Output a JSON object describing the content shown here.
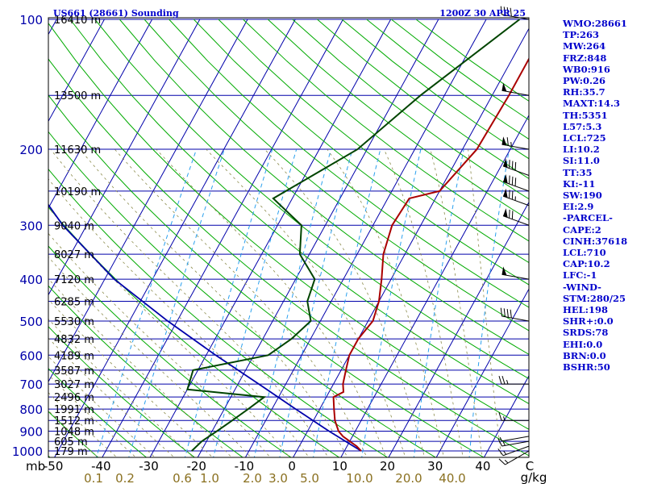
{
  "chart_data": {
    "type": "line",
    "title_left": "US661 (28661) Sounding",
    "title_right": "1200Z 30 APR 25",
    "pressure_unit": "mb",
    "mixing_unit": "g/kg",
    "pressure_ticks": [
      {
        "p": 100,
        "label": "100"
      },
      {
        "p": 200,
        "label": "200"
      },
      {
        "p": 300,
        "label": "300"
      },
      {
        "p": 400,
        "label": "400"
      },
      {
        "p": 500,
        "label": "500"
      },
      {
        "p": 600,
        "label": "600"
      },
      {
        "p": 700,
        "label": "700"
      },
      {
        "p": 800,
        "label": "800"
      },
      {
        "p": 900,
        "label": "900"
      },
      {
        "p": 1000,
        "label": "1000"
      }
    ],
    "temperature_ticks": [
      {
        "t": -50,
        "label": "-50"
      },
      {
        "t": -40,
        "label": "-40"
      },
      {
        "t": -30,
        "label": "-30"
      },
      {
        "t": -20,
        "label": "-20"
      },
      {
        "t": -10,
        "label": "-10"
      },
      {
        "t": 0,
        "label": "0"
      },
      {
        "t": 10,
        "label": "10"
      },
      {
        "t": 20,
        "label": "20"
      },
      {
        "t": 30,
        "label": "30"
      },
      {
        "t": 40,
        "label": "40"
      }
    ],
    "mixing_ratio_labels": [
      "0.1",
      "0.2",
      "0.6",
      "1.0",
      "2.0",
      "3.0",
      "5.0",
      "10.0",
      "20.0",
      "40.0"
    ],
    "heights": [
      {
        "p": 100,
        "label": "16410 m"
      },
      {
        "p": 150,
        "label": "13500 m"
      },
      {
        "p": 200,
        "label": "11630 m"
      },
      {
        "p": 250,
        "label": "10190 m"
      },
      {
        "p": 300,
        "label": "9040 m"
      },
      {
        "p": 350,
        "label": "8027 m"
      },
      {
        "p": 400,
        "label": "7120 m"
      },
      {
        "p": 450,
        "label": "6285 m"
      },
      {
        "p": 500,
        "label": "5530 m"
      },
      {
        "p": 550,
        "label": "4832 m"
      },
      {
        "p": 600,
        "label": "4189 m"
      },
      {
        "p": 650,
        "label": "3587 m"
      },
      {
        "p": 700,
        "label": "3027 m"
      },
      {
        "p": 750,
        "label": "2496 m"
      },
      {
        "p": 800,
        "label": "1991 m"
      },
      {
        "p": 850,
        "label": "1512 m"
      },
      {
        "p": 900,
        "label": "1048 m"
      },
      {
        "p": 950,
        "label": "605 m"
      },
      {
        "p": 1000,
        "label": "179 m"
      }
    ],
    "temperature_profile": [
      {
        "p": 1000,
        "t": 13.5
      },
      {
        "p": 975,
        "t": 12.0
      },
      {
        "p": 950,
        "t": 10.0
      },
      {
        "p": 925,
        "t": 8.0
      },
      {
        "p": 900,
        "t": 6.5
      },
      {
        "p": 850,
        "t": 4.5
      },
      {
        "p": 800,
        "t": 3.0
      },
      {
        "p": 750,
        "t": 1.5
      },
      {
        "p": 730,
        "t": 3.0
      },
      {
        "p": 700,
        "t": 2.0
      },
      {
        "p": 650,
        "t": 1.0
      },
      {
        "p": 600,
        "t": 0.0
      },
      {
        "p": 550,
        "t": 0.0
      },
      {
        "p": 500,
        "t": 1.0
      },
      {
        "p": 450,
        "t": 0.0
      },
      {
        "p": 400,
        "t": -2.0
      },
      {
        "p": 350,
        "t": -4.5
      },
      {
        "p": 300,
        "t": -6.0
      },
      {
        "p": 260,
        "t": -5.5
      },
      {
        "p": 250,
        "t": 0.0
      },
      {
        "p": 200,
        "t": 3.0
      },
      {
        "p": 150,
        "t": 3.5
      },
      {
        "p": 100,
        "t": 3.5
      }
    ],
    "dewpoint_profile": [
      {
        "p": 1000,
        "t": -22.0
      },
      {
        "p": 950,
        "t": -21.0
      },
      {
        "p": 900,
        "t": -19.0
      },
      {
        "p": 850,
        "t": -17.0
      },
      {
        "p": 800,
        "t": -15.0
      },
      {
        "p": 750,
        "t": -13.0
      },
      {
        "p": 720,
        "t": -30.0
      },
      {
        "p": 650,
        "t": -31.0
      },
      {
        "p": 600,
        "t": -17.0
      },
      {
        "p": 550,
        "t": -14.0
      },
      {
        "p": 500,
        "t": -12.0
      },
      {
        "p": 450,
        "t": -15.0
      },
      {
        "p": 400,
        "t": -16.0
      },
      {
        "p": 350,
        "t": -22.0
      },
      {
        "p": 300,
        "t": -25.0
      },
      {
        "p": 260,
        "t": -34.0
      },
      {
        "p": 200,
        "t": -22.0
      },
      {
        "p": 150,
        "t": -15.0
      },
      {
        "p": 100,
        "t": -3.0
      }
    ],
    "parcel_profile": [
      {
        "p": 1000,
        "t": 13.5
      },
      {
        "p": 900,
        "t": 4.5
      },
      {
        "p": 800,
        "t": -5.0
      },
      {
        "p": 710,
        "t": -14.5
      },
      {
        "p": 600,
        "t": -28.0
      },
      {
        "p": 500,
        "t": -42.0
      },
      {
        "p": 400,
        "t": -58.0
      },
      {
        "p": 300,
        "t": -75.0
      },
      {
        "p": 200,
        "t": -95.0
      },
      {
        "p": 150,
        "t": -110.0
      }
    ],
    "wind_barbs": [
      {
        "p": 1000,
        "dir": 240,
        "spd": 15
      },
      {
        "p": 975,
        "dir": 250,
        "spd": 15
      },
      {
        "p": 950,
        "dir": 260,
        "spd": 15
      },
      {
        "p": 925,
        "dir": 260,
        "spd": 5
      },
      {
        "p": 850,
        "dir": 270,
        "spd": 15
      },
      {
        "p": 700,
        "dir": 270,
        "spd": 25
      },
      {
        "p": 500,
        "dir": 280,
        "spd": 40
      },
      {
        "p": 400,
        "dir": 280,
        "spd": 50
      },
      {
        "p": 300,
        "dir": 290,
        "spd": 70
      },
      {
        "p": 270,
        "dir": 290,
        "spd": 75
      },
      {
        "p": 250,
        "dir": 290,
        "spd": 80
      },
      {
        "p": 230,
        "dir": 290,
        "spd": 80
      },
      {
        "p": 200,
        "dir": 280,
        "spd": 65
      },
      {
        "p": 150,
        "dir": 280,
        "spd": 50
      },
      {
        "p": 100,
        "dir": 280,
        "spd": 40
      }
    ]
  },
  "stats": [
    "WMO:28661",
    "TP:263",
    "MW:264",
    "FRZ:848",
    "WB0:916",
    "PW:0.26",
    "RH:35.7",
    "MAXT:14.3",
    "TH:5351",
    "L57:5.3",
    "LCL:725",
    "LI:10.2",
    "SI:11.0",
    "TT:35",
    "KI:-11",
    "SW:190",
    "EI:2.9",
    "-PARCEL-",
    "CAPE:2",
    "CINH:37618",
    "LCL:710",
    "CAP:10.2",
    "LFC:-1",
    "-WIND-",
    "STM:280/25",
    "HEL:198",
    "SHR+:0.0",
    "SRDS:78",
    "EHI:0.0",
    "BRN:0.0",
    "BSHR:50"
  ],
  "colors": {
    "isobar": "#0000aa",
    "isotherm": "#0000aa",
    "dry_adiabat": "#00aa00",
    "moist_adiabat": "#8a8a4a",
    "mixing_ratio": "#2aa0ee",
    "temperature": "#aa0000",
    "dewpoint": "#004400",
    "parcel": "#0000aa",
    "stats_text": "#0000cc",
    "mixing_label": "#8a7020"
  }
}
